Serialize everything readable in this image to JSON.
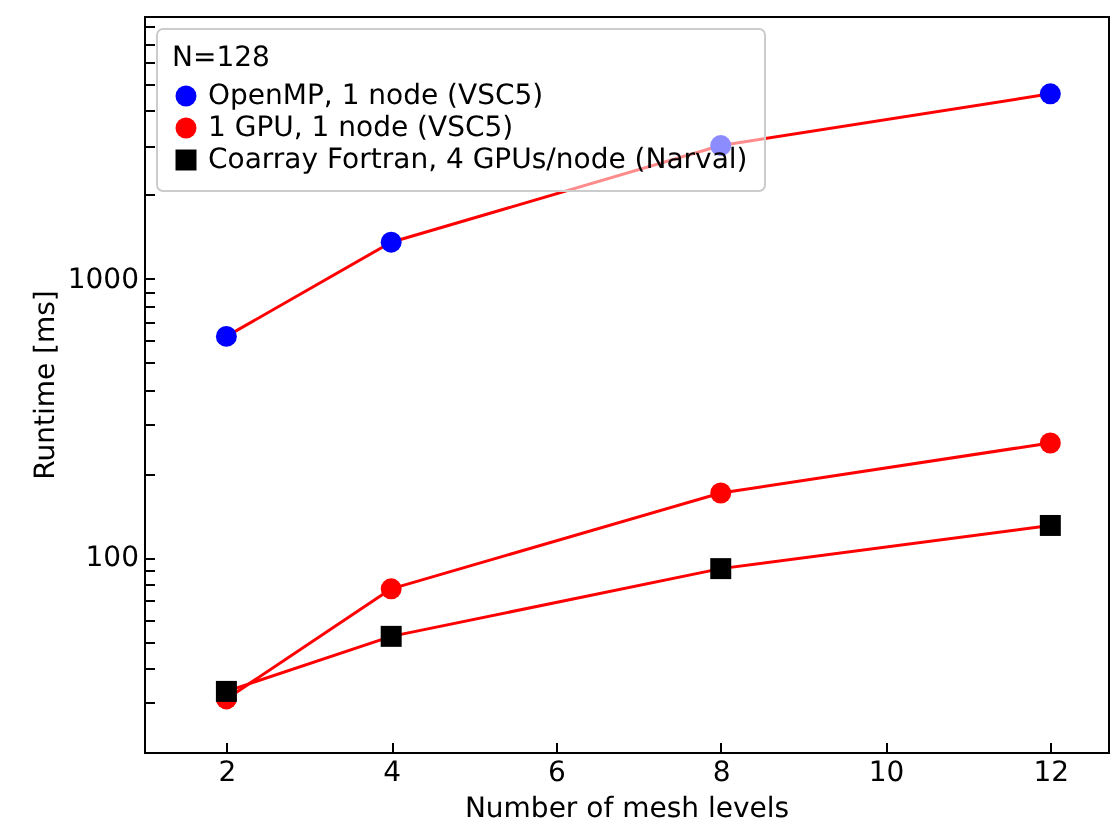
{
  "chart_data": {
    "type": "line",
    "xlabel": "Number of mesh levels",
    "ylabel": "Runtime [ms]",
    "legend_title": "N=128",
    "legend": "top left",
    "grid": false,
    "log": "y",
    "xlim": [
      1,
      12.7
    ],
    "xticks": [
      2,
      4,
      6,
      8,
      10,
      12
    ],
    "ylim": [
      20,
      8750
    ],
    "yticks": [
      {
        "value": 20,
        "label": null
      },
      {
        "value": 30,
        "label": null
      },
      {
        "value": 40,
        "label": null
      },
      {
        "value": 50,
        "label": null
      },
      {
        "value": 60,
        "label": null
      },
      {
        "value": 70,
        "label": null
      },
      {
        "value": 80,
        "label": null
      },
      {
        "value": 90,
        "label": null
      },
      100,
      {
        "value": 200,
        "label": null
      },
      {
        "value": 300,
        "label": null
      },
      {
        "value": 400,
        "label": null
      },
      {
        "value": 500,
        "label": null
      },
      {
        "value": 600,
        "label": null
      },
      {
        "value": 700,
        "label": null
      },
      {
        "value": 800,
        "label": null
      },
      {
        "value": 900,
        "label": null
      },
      1000,
      {
        "value": 2000,
        "label": null
      },
      {
        "value": 3000,
        "label": null
      },
      {
        "value": 4000,
        "label": null
      },
      {
        "value": 5000,
        "label": null
      },
      {
        "value": 6000,
        "label": null
      },
      {
        "value": 7000,
        "label": null
      },
      {
        "value": 8000,
        "label": null
      }
    ],
    "x": [
      2,
      4,
      8,
      12
    ],
    "series": [
      {
        "name": "OpenMP, 1 node (VSC5)",
        "color": "#ff0000",
        "colors": [
          "#0000ff",
          "#0000ff",
          "#0000ff",
          "#0000ff"
        ],
        "marker": "circle",
        "values": [
          620,
          1350,
          3000,
          4600
        ]
      },
      {
        "name": "1 GPU, 1 node (VSC5)",
        "color": "#ff0000",
        "colors": [
          "#ff0000",
          "#ff0000",
          "#ff0000",
          "#ff0000"
        ],
        "marker": "circle",
        "values": [
          31,
          77,
          170,
          257
        ]
      },
      {
        "name": "Coarray Fortran, 4 GPUs/node (Narval)",
        "color": "#ff0000",
        "colors": [
          "#000000",
          "#000000",
          "#000000",
          "#000000"
        ],
        "marker": "square",
        "values": [
          33,
          52,
          91,
          130
        ]
      }
    ]
  }
}
